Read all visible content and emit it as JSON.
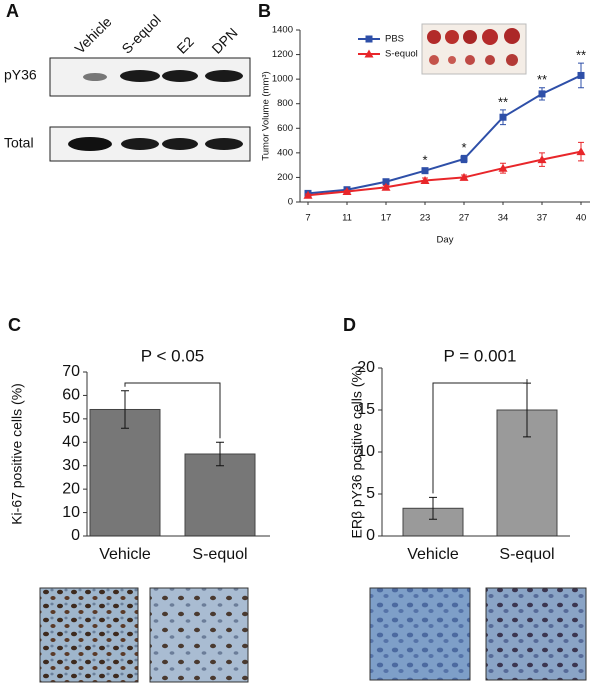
{
  "panel_labels": [
    "A",
    "B",
    "C",
    "D"
  ],
  "blot": {
    "lanes": [
      "Vehicle",
      "S-equol",
      "E2",
      "DPN"
    ],
    "rows": [
      "pY36",
      "Total"
    ]
  },
  "chart_data": [
    {
      "type": "line",
      "xlabel": "Day",
      "ylabel": "Tumor Volume (mm³)",
      "categories": [
        "7",
        "11",
        "17",
        "23",
        "27",
        "34",
        "37",
        "40"
      ],
      "series": [
        {
          "name": "PBS",
          "color": "#2e4fa8",
          "marker": "square",
          "values": [
            70,
            100,
            165,
            255,
            350,
            690,
            880,
            1030
          ],
          "errors": [
            10,
            15,
            20,
            20,
            30,
            60,
            50,
            100
          ]
        },
        {
          "name": "S-equol",
          "color": "#e8262a",
          "marker": "triangle",
          "values": [
            55,
            85,
            120,
            175,
            200,
            275,
            345,
            410
          ],
          "errors": [
            10,
            10,
            15,
            20,
            20,
            40,
            55,
            75
          ]
        }
      ],
      "annotations": [
        {
          "category": "23",
          "text": "*"
        },
        {
          "category": "27",
          "text": "*"
        },
        {
          "category": "34",
          "text": "**"
        },
        {
          "category": "37",
          "text": "**"
        },
        {
          "category": "40",
          "text": "**"
        }
      ],
      "ylim": [
        0,
        1400
      ],
      "yticks": [
        0,
        200,
        400,
        600,
        800,
        1000,
        1200,
        1400
      ],
      "legend": "top-left"
    },
    {
      "type": "bar",
      "ylabel": "Ki-67 positive cells (%)",
      "categories": [
        "Vehicle",
        "S-equol"
      ],
      "values": [
        54,
        35
      ],
      "errors": [
        8,
        5
      ],
      "color": "#777777",
      "annotation": "P < 0.05",
      "ylim": [
        0,
        70
      ],
      "yticks": [
        0,
        10,
        20,
        30,
        40,
        50,
        60,
        70
      ]
    },
    {
      "type": "bar",
      "ylabel": "ERβ pY36 positive cells (%)",
      "categories": [
        "Vehicle",
        "S-equol"
      ],
      "values": [
        3.3,
        15
      ],
      "errors": [
        1.3,
        3.2
      ],
      "color": "#9a9a9a",
      "annotation": "P = 0.001",
      "ylim": [
        0,
        20
      ],
      "yticks": [
        0,
        5,
        10,
        15,
        20
      ]
    }
  ]
}
